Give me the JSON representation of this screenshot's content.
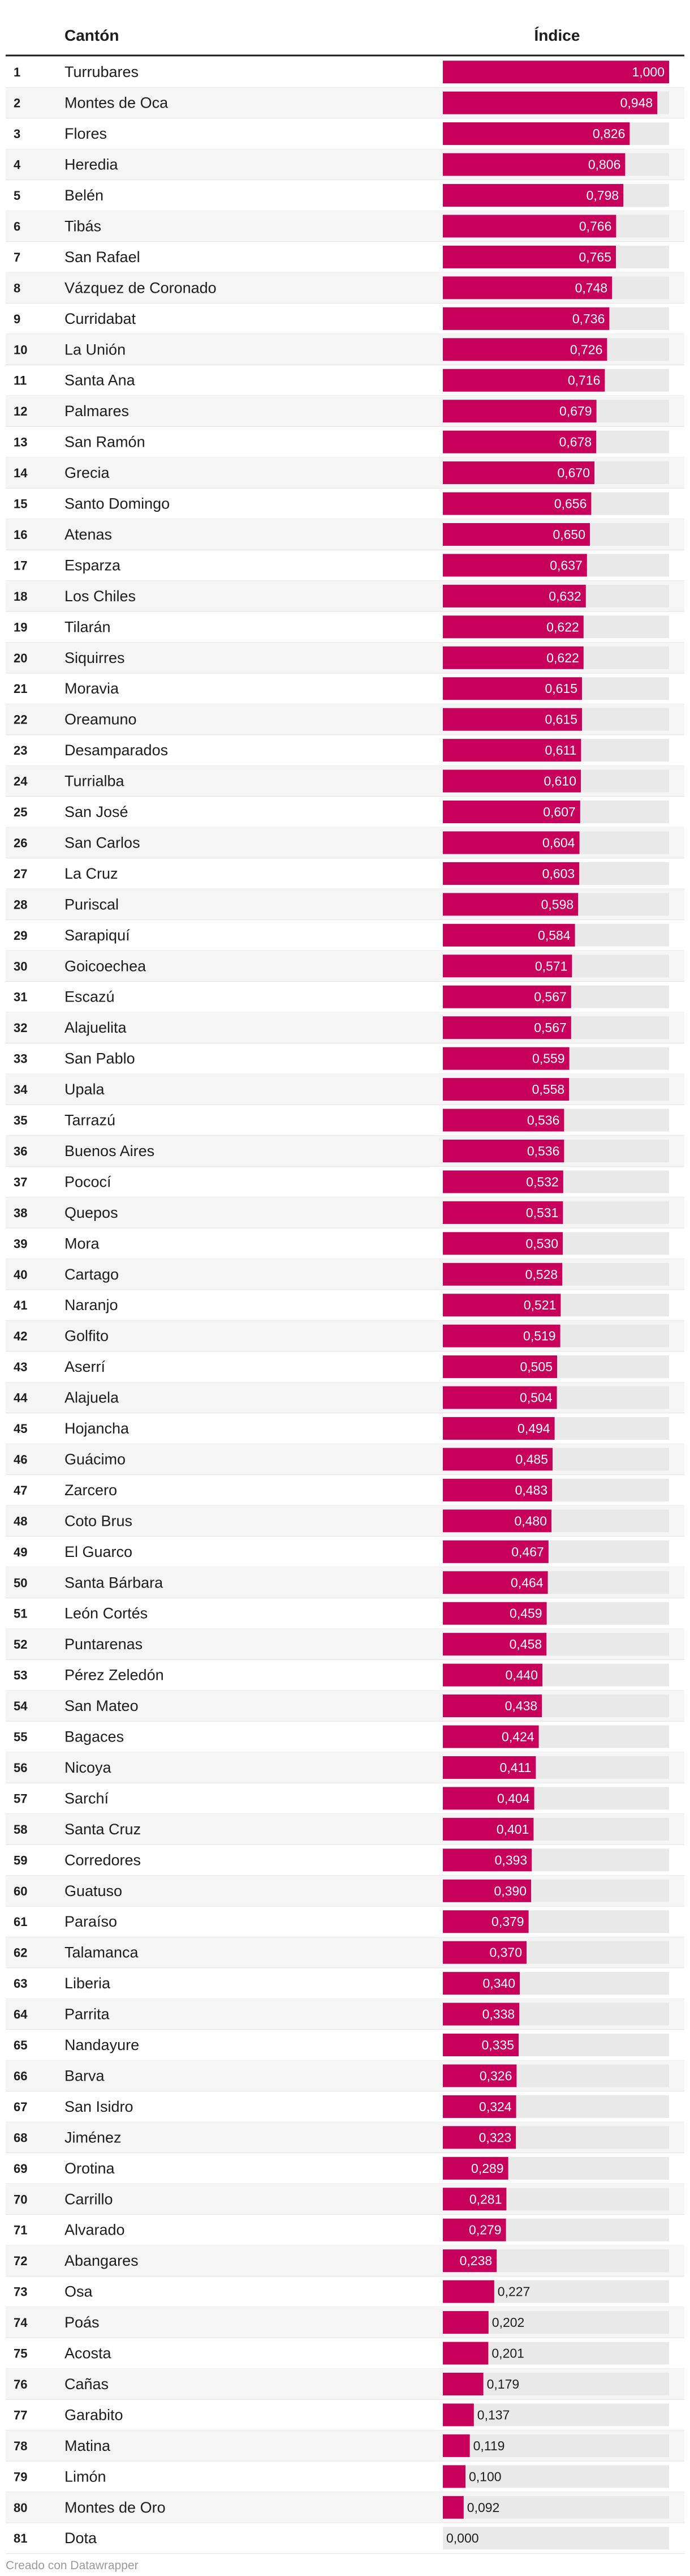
{
  "colors": {
    "bar": "#c7005c",
    "track": "#e9e9e9",
    "row_alt": "#f5f5f5",
    "header_rule": "#1d1d1d",
    "row_rule": "#e2e2e2",
    "value_inside": "#ffffff",
    "value_outside": "#1d1d1d",
    "footer": "#9a9a9a"
  },
  "header": {
    "name_col": "Cantón",
    "value_col": "Índice"
  },
  "footer": {
    "credit": "Creado con Datawrapper"
  },
  "chart_data": {
    "type": "bar",
    "orientation": "horizontal",
    "columns": [
      "Cantón",
      "Índice"
    ],
    "xlim": [
      0,
      1
    ],
    "rows": [
      {
        "rank": "1",
        "name": "Turrubares",
        "value": 1.0,
        "label": "1,000"
      },
      {
        "rank": "2",
        "name": "Montes de Oca",
        "value": 0.948,
        "label": "0,948"
      },
      {
        "rank": "3",
        "name": "Flores",
        "value": 0.826,
        "label": "0,826"
      },
      {
        "rank": "4",
        "name": "Heredia",
        "value": 0.806,
        "label": "0,806"
      },
      {
        "rank": "5",
        "name": "Belén",
        "value": 0.798,
        "label": "0,798"
      },
      {
        "rank": "6",
        "name": "Tibás",
        "value": 0.766,
        "label": "0,766"
      },
      {
        "rank": "7",
        "name": "San Rafael",
        "value": 0.765,
        "label": "0,765"
      },
      {
        "rank": "8",
        "name": "Vázquez de Coronado",
        "value": 0.748,
        "label": "0,748"
      },
      {
        "rank": "9",
        "name": "Curridabat",
        "value": 0.736,
        "label": "0,736"
      },
      {
        "rank": "10",
        "name": "La Unión",
        "value": 0.726,
        "label": "0,726"
      },
      {
        "rank": "11",
        "name": "Santa Ana",
        "value": 0.716,
        "label": "0,716"
      },
      {
        "rank": "12",
        "name": "Palmares",
        "value": 0.679,
        "label": "0,679"
      },
      {
        "rank": "13",
        "name": "San Ramón",
        "value": 0.678,
        "label": "0,678"
      },
      {
        "rank": "14",
        "name": "Grecia",
        "value": 0.67,
        "label": "0,670"
      },
      {
        "rank": "15",
        "name": "Santo Domingo",
        "value": 0.656,
        "label": "0,656"
      },
      {
        "rank": "16",
        "name": "Atenas",
        "value": 0.65,
        "label": "0,650"
      },
      {
        "rank": "17",
        "name": "Esparza",
        "value": 0.637,
        "label": "0,637"
      },
      {
        "rank": "18",
        "name": "Los Chiles",
        "value": 0.632,
        "label": "0,632"
      },
      {
        "rank": "19",
        "name": "Tilarán",
        "value": 0.622,
        "label": "0,622"
      },
      {
        "rank": "20",
        "name": "Siquirres",
        "value": 0.622,
        "label": "0,622"
      },
      {
        "rank": "21",
        "name": "Moravia",
        "value": 0.615,
        "label": "0,615"
      },
      {
        "rank": "22",
        "name": "Oreamuno",
        "value": 0.615,
        "label": "0,615"
      },
      {
        "rank": "23",
        "name": "Desamparados",
        "value": 0.611,
        "label": "0,611"
      },
      {
        "rank": "24",
        "name": "Turrialba",
        "value": 0.61,
        "label": "0,610"
      },
      {
        "rank": "25",
        "name": "San José",
        "value": 0.607,
        "label": "0,607"
      },
      {
        "rank": "26",
        "name": "San Carlos",
        "value": 0.604,
        "label": "0,604"
      },
      {
        "rank": "27",
        "name": "La Cruz",
        "value": 0.603,
        "label": "0,603"
      },
      {
        "rank": "28",
        "name": "Puriscal",
        "value": 0.598,
        "label": "0,598"
      },
      {
        "rank": "29",
        "name": "Sarapiquí",
        "value": 0.584,
        "label": "0,584"
      },
      {
        "rank": "30",
        "name": "Goicoechea",
        "value": 0.571,
        "label": "0,571"
      },
      {
        "rank": "31",
        "name": "Escazú",
        "value": 0.567,
        "label": "0,567"
      },
      {
        "rank": "32",
        "name": "Alajuelita",
        "value": 0.567,
        "label": "0,567"
      },
      {
        "rank": "33",
        "name": "San Pablo",
        "value": 0.559,
        "label": "0,559"
      },
      {
        "rank": "34",
        "name": "Upala",
        "value": 0.558,
        "label": "0,558"
      },
      {
        "rank": "35",
        "name": "Tarrazú",
        "value": 0.536,
        "label": "0,536"
      },
      {
        "rank": "36",
        "name": "Buenos Aires",
        "value": 0.536,
        "label": "0,536"
      },
      {
        "rank": "37",
        "name": "Pococí",
        "value": 0.532,
        "label": "0,532"
      },
      {
        "rank": "38",
        "name": "Quepos",
        "value": 0.531,
        "label": "0,531"
      },
      {
        "rank": "39",
        "name": "Mora",
        "value": 0.53,
        "label": "0,530"
      },
      {
        "rank": "40",
        "name": "Cartago",
        "value": 0.528,
        "label": "0,528"
      },
      {
        "rank": "41",
        "name": "Naranjo",
        "value": 0.521,
        "label": "0,521"
      },
      {
        "rank": "42",
        "name": "Golfito",
        "value": 0.519,
        "label": "0,519"
      },
      {
        "rank": "43",
        "name": "Aserrí",
        "value": 0.505,
        "label": "0,505"
      },
      {
        "rank": "44",
        "name": "Alajuela",
        "value": 0.504,
        "label": "0,504"
      },
      {
        "rank": "45",
        "name": "Hojancha",
        "value": 0.494,
        "label": "0,494"
      },
      {
        "rank": "46",
        "name": "Guácimo",
        "value": 0.485,
        "label": "0,485"
      },
      {
        "rank": "47",
        "name": "Zarcero",
        "value": 0.483,
        "label": "0,483"
      },
      {
        "rank": "48",
        "name": "Coto Brus",
        "value": 0.48,
        "label": "0,480"
      },
      {
        "rank": "49",
        "name": "El Guarco",
        "value": 0.467,
        "label": "0,467"
      },
      {
        "rank": "50",
        "name": "Santa Bárbara",
        "value": 0.464,
        "label": "0,464"
      },
      {
        "rank": "51",
        "name": "León Cortés",
        "value": 0.459,
        "label": "0,459"
      },
      {
        "rank": "52",
        "name": "Puntarenas",
        "value": 0.458,
        "label": "0,458"
      },
      {
        "rank": "53",
        "name": "Pérez Zeledón",
        "value": 0.44,
        "label": "0,440"
      },
      {
        "rank": "54",
        "name": "San Mateo",
        "value": 0.438,
        "label": "0,438"
      },
      {
        "rank": "55",
        "name": "Bagaces",
        "value": 0.424,
        "label": "0,424"
      },
      {
        "rank": "56",
        "name": "Nicoya",
        "value": 0.411,
        "label": "0,411"
      },
      {
        "rank": "57",
        "name": "Sarchí",
        "value": 0.404,
        "label": "0,404"
      },
      {
        "rank": "58",
        "name": "Santa Cruz",
        "value": 0.401,
        "label": "0,401"
      },
      {
        "rank": "59",
        "name": "Corredores",
        "value": 0.393,
        "label": "0,393"
      },
      {
        "rank": "60",
        "name": "Guatuso",
        "value": 0.39,
        "label": "0,390"
      },
      {
        "rank": "61",
        "name": "Paraíso",
        "value": 0.379,
        "label": "0,379"
      },
      {
        "rank": "62",
        "name": "Talamanca",
        "value": 0.37,
        "label": "0,370"
      },
      {
        "rank": "63",
        "name": "Liberia",
        "value": 0.34,
        "label": "0,340"
      },
      {
        "rank": "64",
        "name": "Parrita",
        "value": 0.338,
        "label": "0,338"
      },
      {
        "rank": "65",
        "name": "Nandayure",
        "value": 0.335,
        "label": "0,335"
      },
      {
        "rank": "66",
        "name": "Barva",
        "value": 0.326,
        "label": "0,326"
      },
      {
        "rank": "67",
        "name": "San Isidro",
        "value": 0.324,
        "label": "0,324"
      },
      {
        "rank": "68",
        "name": "Jiménez",
        "value": 0.323,
        "label": "0,323"
      },
      {
        "rank": "69",
        "name": "Orotina",
        "value": 0.289,
        "label": "0,289"
      },
      {
        "rank": "70",
        "name": "Carrillo",
        "value": 0.281,
        "label": "0,281"
      },
      {
        "rank": "71",
        "name": "Alvarado",
        "value": 0.279,
        "label": "0,279"
      },
      {
        "rank": "72",
        "name": "Abangares",
        "value": 0.238,
        "label": "0,238"
      },
      {
        "rank": "73",
        "name": "Osa",
        "value": 0.227,
        "label": "0,227"
      },
      {
        "rank": "74",
        "name": "Poás",
        "value": 0.202,
        "label": "0,202"
      },
      {
        "rank": "75",
        "name": "Acosta",
        "value": 0.201,
        "label": "0,201"
      },
      {
        "rank": "76",
        "name": "Cañas",
        "value": 0.179,
        "label": "0,179"
      },
      {
        "rank": "77",
        "name": "Garabito",
        "value": 0.137,
        "label": "0,137"
      },
      {
        "rank": "78",
        "name": "Matina",
        "value": 0.119,
        "label": "0,119"
      },
      {
        "rank": "79",
        "name": "Limón",
        "value": 0.1,
        "label": "0,100"
      },
      {
        "rank": "80",
        "name": "Montes de Oro",
        "value": 0.092,
        "label": "0,092"
      },
      {
        "rank": "81",
        "name": "Dota",
        "value": 0.0,
        "label": "0,000"
      }
    ]
  }
}
